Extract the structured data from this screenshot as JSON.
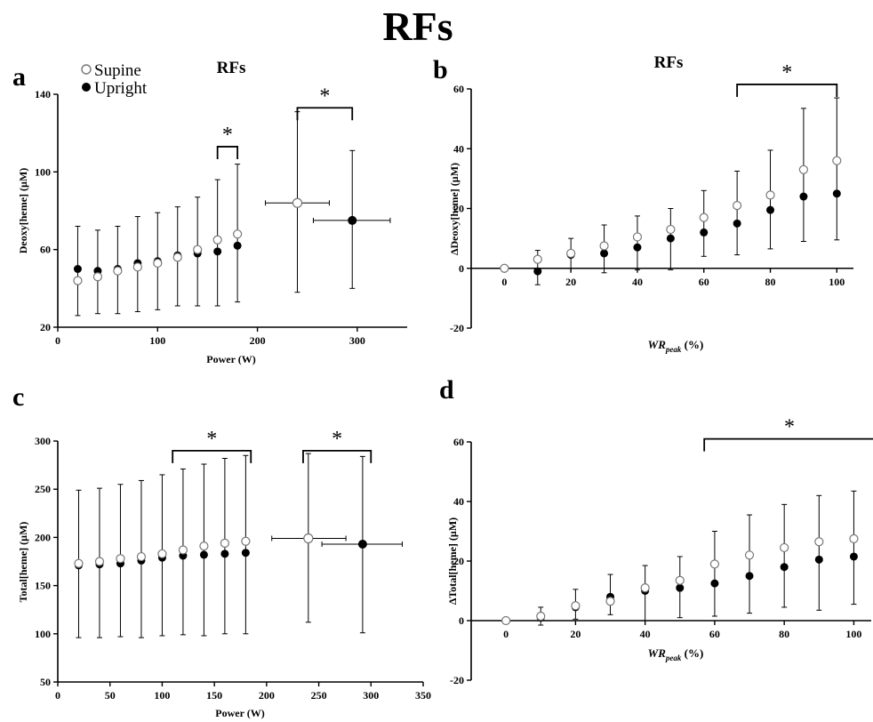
{
  "figure": {
    "title": "RFs",
    "legend": [
      {
        "label": "Supine",
        "marker": "open-circle"
      },
      {
        "label": "Upright",
        "marker": "filled-circle"
      }
    ]
  },
  "colors": {
    "supine_fill": "#ffffff",
    "upright_fill": "#000000",
    "axis": "#000000",
    "supine_edge": "#777777"
  },
  "chart_data": [
    {
      "panel_letter": "a",
      "type": "scatter",
      "title": "RFs",
      "xlabel": "Power (W)",
      "ylabel": "Deoxy[heme] (µM)",
      "xlim": [
        0,
        350
      ],
      "ylim": [
        20,
        140
      ],
      "xticks": [
        0,
        100,
        200,
        300
      ],
      "yticks": [
        20,
        60,
        100,
        140
      ],
      "grid": false,
      "series": [
        {
          "name": "Supine",
          "x": [
            20,
            40,
            60,
            80,
            100,
            120,
            140,
            160,
            180
          ],
          "y": [
            44,
            46,
            49,
            51,
            53,
            56,
            60,
            65,
            68
          ],
          "err_low": [
            26,
            27,
            27,
            28,
            29,
            31,
            31,
            31,
            33
          ],
          "err_high": [
            72,
            70,
            72,
            77,
            79,
            82,
            87,
            96,
            104
          ]
        },
        {
          "name": "Upright",
          "x": [
            20,
            40,
            60,
            80,
            100,
            120,
            140,
            160,
            180
          ],
          "y": [
            50,
            49,
            50,
            53,
            54,
            57,
            58,
            59,
            62
          ],
          "err_low": [
            26,
            27,
            27,
            28,
            29,
            31,
            31,
            31,
            33
          ],
          "err_high": [
            72,
            70,
            72,
            77,
            79,
            82,
            87,
            96,
            104
          ]
        }
      ],
      "peak_points": [
        {
          "series": "Supine",
          "x": 240,
          "y": 84,
          "xerr": [
            208,
            272
          ],
          "yerr": [
            38,
            131
          ]
        },
        {
          "series": "Upright",
          "x": 295,
          "y": 75,
          "xerr": [
            256,
            333
          ],
          "yerr": [
            40,
            111
          ]
        }
      ],
      "significance": [
        {
          "x_from": 160,
          "x_to": 180,
          "y": 113,
          "label": "*"
        },
        {
          "x_from": 240,
          "x_to": 295,
          "y": 133,
          "label": "*"
        }
      ]
    },
    {
      "panel_letter": "b",
      "type": "scatter",
      "title": "RFs",
      "xlabel": "WRpeak (%)",
      "xlabel_main": "WR",
      "xlabel_sub": "peak",
      "xlabel_suffix": " (%)",
      "ylabel": "ΔDeoxy[heme] (µM)",
      "xlim": [
        -10,
        105
      ],
      "ylim": [
        -20,
        60
      ],
      "xticks": [
        0,
        20,
        40,
        60,
        80,
        100
      ],
      "yticks": [
        -20,
        0,
        20,
        40,
        60
      ],
      "grid": false,
      "series": [
        {
          "name": "Supine",
          "x": [
            0,
            10,
            20,
            30,
            40,
            50,
            60,
            70,
            80,
            90,
            100
          ],
          "y": [
            0,
            3,
            5,
            7.5,
            10.5,
            13,
            17,
            21,
            24.5,
            33,
            36
          ],
          "err_low": [
            0,
            -5.5,
            0,
            -1.5,
            -0.5,
            -0.5,
            4,
            4.5,
            6.5,
            9,
            9.5
          ],
          "err_high": [
            0,
            6,
            10,
            14.5,
            17.5,
            20,
            26,
            32.5,
            39.5,
            53.5,
            57
          ]
        },
        {
          "name": "Upright",
          "x": [
            0,
            10,
            20,
            30,
            40,
            50,
            60,
            70,
            80,
            90,
            100
          ],
          "y": [
            0,
            -1,
            4.5,
            5,
            7,
            10,
            12,
            15,
            19.5,
            24,
            25
          ],
          "err_low": [
            0,
            -5.5,
            0,
            -1.5,
            -0.5,
            -0.5,
            4,
            4.5,
            6.5,
            9,
            9.5
          ],
          "err_high": [
            0,
            6,
            10,
            14.5,
            17.5,
            20,
            26,
            32.5,
            39.5,
            53.5,
            57
          ]
        }
      ],
      "significance": [
        {
          "x_from": 70,
          "x_to": 100,
          "y": 61.5,
          "label": "*"
        }
      ]
    },
    {
      "panel_letter": "c",
      "type": "scatter",
      "title": "",
      "xlabel": "Power (W)",
      "ylabel": "Total[heme] (µM)",
      "xlim": [
        0,
        350
      ],
      "ylim": [
        50,
        300
      ],
      "xticks": [
        0,
        50,
        100,
        150,
        200,
        250,
        300,
        350
      ],
      "yticks": [
        50,
        100,
        150,
        200,
        250,
        300
      ],
      "grid": false,
      "series": [
        {
          "name": "Supine",
          "x": [
            20,
            40,
            60,
            80,
            100,
            120,
            140,
            160,
            180
          ],
          "y": [
            173,
            175,
            178,
            180,
            183,
            187,
            191,
            194,
            196
          ],
          "err_low": [
            96,
            96,
            97,
            96,
            98,
            99,
            98,
            100,
            100
          ],
          "err_high": [
            249,
            251,
            255,
            259,
            265,
            271,
            276,
            282,
            285
          ]
        },
        {
          "name": "Upright",
          "x": [
            20,
            40,
            60,
            80,
            100,
            120,
            140,
            160,
            180
          ],
          "y": [
            171,
            172,
            173,
            176,
            179,
            181,
            182,
            183,
            184
          ],
          "err_low": [
            96,
            96,
            97,
            96,
            98,
            99,
            98,
            100,
            100
          ],
          "err_high": [
            249,
            251,
            255,
            259,
            265,
            271,
            276,
            282,
            285
          ]
        }
      ],
      "peak_points": [
        {
          "series": "Supine",
          "x": 240,
          "y": 199,
          "xerr": [
            205,
            276
          ],
          "yerr": [
            112,
            287
          ]
        },
        {
          "series": "Upright",
          "x": 292,
          "y": 193,
          "xerr": [
            253,
            330
          ],
          "yerr": [
            101,
            284
          ]
        }
      ],
      "significance": [
        {
          "x_from": 110,
          "x_to": 185,
          "y": 290,
          "label": "*"
        },
        {
          "x_from": 235,
          "x_to": 300,
          "y": 290,
          "label": "*"
        }
      ]
    },
    {
      "panel_letter": "d",
      "type": "scatter",
      "title": "",
      "xlabel": "WRpeak (%)",
      "xlabel_main": "WR",
      "xlabel_sub": "peak",
      "xlabel_suffix": " (%)",
      "ylabel": "ΔTotal[heme] (µM)",
      "xlim": [
        -10,
        105
      ],
      "ylim": [
        -20,
        60
      ],
      "xticks": [
        0,
        20,
        40,
        60,
        80,
        100
      ],
      "yticks": [
        -20,
        0,
        20,
        40,
        60
      ],
      "grid": false,
      "series": [
        {
          "name": "Supine",
          "x": [
            0,
            10,
            20,
            30,
            40,
            50,
            60,
            70,
            80,
            90,
            100
          ],
          "y": [
            0,
            1.5,
            5,
            6.5,
            11,
            13.5,
            19,
            22,
            24.5,
            26.5,
            27.5
          ],
          "err_low": [
            0,
            -1.5,
            0.5,
            2,
            0,
            1,
            1.5,
            2.5,
            4.5,
            3.5,
            5.5
          ],
          "err_high": [
            0,
            4.5,
            10.5,
            15.5,
            18.5,
            21.5,
            30,
            35.5,
            39,
            42,
            43.5
          ]
        },
        {
          "name": "Upright",
          "x": [
            0,
            10,
            20,
            30,
            40,
            50,
            60,
            70,
            80,
            90,
            100
          ],
          "y": [
            0,
            1,
            4.5,
            8,
            10,
            11,
            12.5,
            15,
            18,
            20.5,
            21.5
          ],
          "err_low": [
            0,
            -1.5,
            0.5,
            2,
            0,
            1,
            1.5,
            2.5,
            4.5,
            3.5,
            5.5
          ],
          "err_high": [
            0,
            4.5,
            10.5,
            15.5,
            18.5,
            21.5,
            30,
            35.5,
            39,
            42,
            43.5
          ]
        }
      ],
      "significance": [
        {
          "x_from": 57,
          "x_to": 106,
          "y": 61,
          "label": "*"
        }
      ]
    }
  ]
}
